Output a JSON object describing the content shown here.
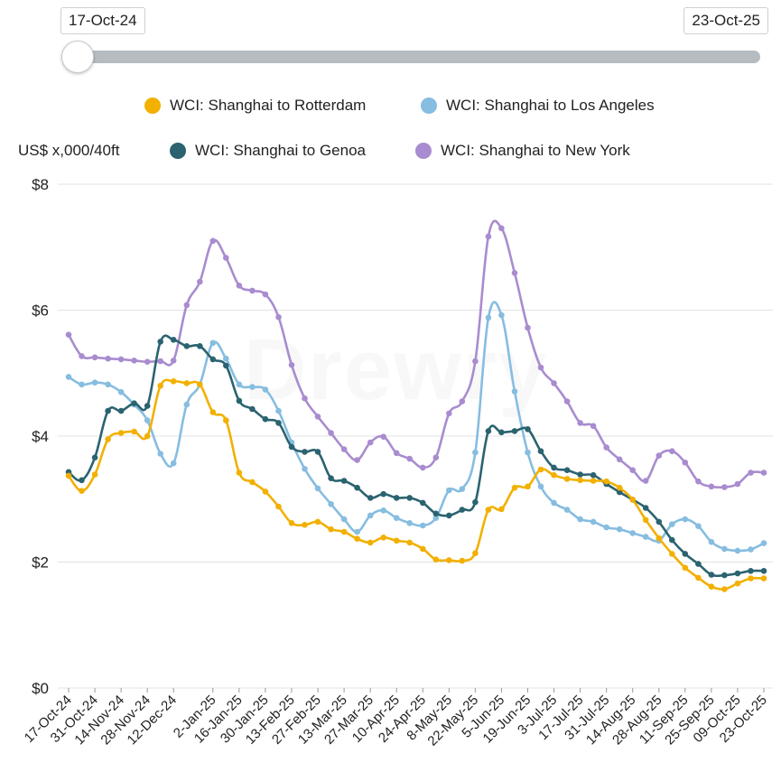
{
  "range": {
    "start_label": "17-Oct-24",
    "end_label": "23-Oct-25"
  },
  "watermark_text": "Drewry",
  "chart_data": {
    "type": "line",
    "ylabel": "US$ x,000/40ft",
    "ylim": [
      0,
      8
    ],
    "yticks": [
      0,
      2,
      4,
      6,
      8
    ],
    "ytick_labels": [
      "$0",
      "$2",
      "$4",
      "$6",
      "$8"
    ],
    "grid": true,
    "legend_position": "top",
    "x": [
      "17-Oct-24",
      "24-Oct-24",
      "31-Oct-24",
      "7-Nov-24",
      "14-Nov-24",
      "21-Nov-24",
      "28-Nov-24",
      "5-Dec-24",
      "12-Dec-24",
      "19-Dec-24",
      "26-Dec-24",
      "2-Jan-25",
      "9-Jan-25",
      "16-Jan-25",
      "23-Jan-25",
      "30-Jan-25",
      "6-Feb-25",
      "13-Feb-25",
      "20-Feb-25",
      "27-Feb-25",
      "6-Mar-25",
      "13-Mar-25",
      "20-Mar-25",
      "27-Mar-25",
      "3-Apr-25",
      "10-Apr-25",
      "17-Apr-25",
      "24-Apr-25",
      "1-May-25",
      "8-May-25",
      "15-May-25",
      "22-May-25",
      "29-May-25",
      "5-Jun-25",
      "12-Jun-25",
      "19-Jun-25",
      "26-Jun-25",
      "3-Jul-25",
      "10-Jul-25",
      "17-Jul-25",
      "24-Jul-25",
      "31-Jul-25",
      "7-Aug-25",
      "14-Aug-25",
      "21-Aug-25",
      "28-Aug-25",
      "4-Sep-25",
      "11-Sep-25",
      "18-Sep-25",
      "25-Sep-25",
      "2-Oct-25",
      "09-Oct-25",
      "16-Oct-25",
      "23-Oct-25"
    ],
    "tick_labels": [
      "17-Oct-24",
      "31-Oct-24",
      "14-Nov-24",
      "28-Nov-24",
      "12-Dec-24",
      "2-Jan-25",
      "16-Jan-25",
      "30-Jan-25",
      "13-Feb-25",
      "27-Feb-25",
      "13-Mar-25",
      "27-Mar-25",
      "10-Apr-25",
      "24-Apr-25",
      "8-May-25",
      "22-May-25",
      "5-Jun-25",
      "19-Jun-25",
      "3-Jul-25",
      "17-Jul-25",
      "31-Jul-25",
      "14-Aug-25",
      "28-Aug-25",
      "11-Sep-25",
      "25-Sep-25",
      "09-Oct-25",
      "23-Oct-25"
    ],
    "series": [
      {
        "name": "WCI: Shanghai to Rotterdam",
        "color": "#f2b000",
        "values": [
          3.37,
          3.13,
          3.39,
          3.95,
          4.05,
          4.07,
          4.0,
          4.8,
          4.87,
          4.84,
          4.82,
          4.38,
          4.25,
          3.42,
          3.27,
          3.12,
          2.88,
          2.62,
          2.59,
          2.64,
          2.52,
          2.48,
          2.37,
          2.31,
          2.39,
          2.34,
          2.31,
          2.21,
          2.04,
          2.03,
          2.02,
          2.14,
          2.83,
          2.84,
          3.18,
          3.2,
          3.47,
          3.38,
          3.32,
          3.3,
          3.29,
          3.28,
          3.18,
          2.99,
          2.67,
          2.38,
          2.13,
          1.91,
          1.75,
          1.61,
          1.57,
          1.66,
          1.74,
          1.74
        ]
      },
      {
        "name": "WCI: Shanghai to Los Angeles",
        "color": "#86bde0",
        "values": [
          4.94,
          4.82,
          4.85,
          4.82,
          4.7,
          4.5,
          4.25,
          3.72,
          3.57,
          4.5,
          4.82,
          5.48,
          5.23,
          4.82,
          4.78,
          4.74,
          4.4,
          3.9,
          3.48,
          3.17,
          2.92,
          2.68,
          2.48,
          2.74,
          2.82,
          2.7,
          2.62,
          2.58,
          2.7,
          3.14,
          3.16,
          3.74,
          5.88,
          5.92,
          4.71,
          3.74,
          3.2,
          2.94,
          2.83,
          2.68,
          2.64,
          2.55,
          2.52,
          2.46,
          2.4,
          2.34,
          2.6,
          2.68,
          2.57,
          2.32,
          2.21,
          2.18,
          2.2,
          2.3
        ]
      },
      {
        "name": "WCI: Shanghai to Genoa",
        "color": "#2b6370",
        "values": [
          3.43,
          3.3,
          3.66,
          4.4,
          4.4,
          4.52,
          4.48,
          5.5,
          5.53,
          5.43,
          5.43,
          5.22,
          5.12,
          4.56,
          4.43,
          4.27,
          4.21,
          3.83,
          3.75,
          3.75,
          3.33,
          3.29,
          3.18,
          3.02,
          3.08,
          3.02,
          3.02,
          2.94,
          2.77,
          2.74,
          2.83,
          2.95,
          4.08,
          4.06,
          4.08,
          4.11,
          3.76,
          3.5,
          3.46,
          3.39,
          3.38,
          3.24,
          3.11,
          2.99,
          2.86,
          2.64,
          2.35,
          2.13,
          1.97,
          1.8,
          1.79,
          1.82,
          1.86,
          1.86
        ]
      },
      {
        "name": "WCI: Shanghai to New York",
        "color": "#a98ccf",
        "values": [
          5.61,
          5.27,
          5.25,
          5.23,
          5.22,
          5.2,
          5.18,
          5.19,
          5.2,
          6.08,
          6.45,
          7.1,
          6.83,
          6.39,
          6.31,
          6.25,
          5.89,
          5.13,
          4.6,
          4.31,
          4.05,
          3.79,
          3.62,
          3.9,
          3.99,
          3.73,
          3.64,
          3.5,
          3.66,
          4.36,
          4.55,
          5.19,
          7.17,
          7.3,
          6.59,
          5.72,
          5.09,
          4.84,
          4.55,
          4.21,
          4.16,
          3.82,
          3.63,
          3.46,
          3.29,
          3.69,
          3.76,
          3.58,
          3.28,
          3.2,
          3.19,
          3.24,
          3.42,
          3.42
        ]
      }
    ]
  }
}
